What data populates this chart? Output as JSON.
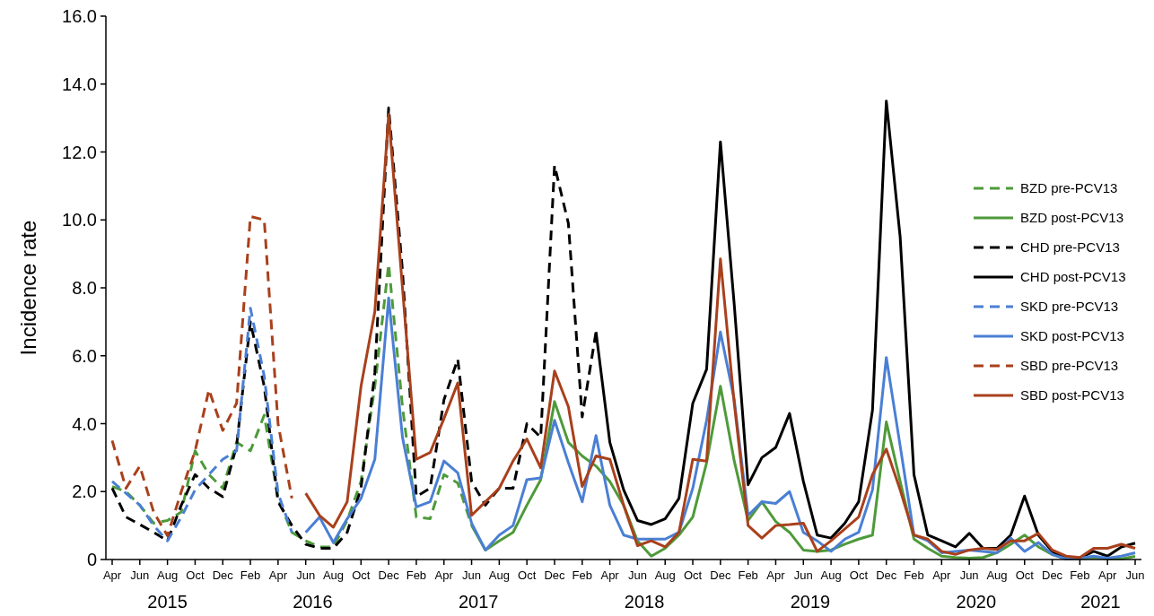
{
  "chart_data": {
    "type": "line",
    "ylabel": "Incidence rate",
    "categories": [
      "Apr",
      null,
      "Jun",
      null,
      "Aug",
      null,
      "Oct",
      null,
      "Dec",
      null,
      "Feb",
      null,
      "Apr",
      null,
      "Jun",
      null,
      "Aug",
      null,
      "Oct",
      null,
      "Dec",
      null,
      "Feb",
      null,
      "Apr",
      null,
      "Jun",
      null,
      "Aug",
      null,
      "Oct",
      null,
      "Dec",
      null,
      "Feb",
      null,
      "Apr",
      null,
      "Jun",
      null,
      "Aug",
      null,
      "Oct",
      null,
      "Dec",
      null,
      "Feb",
      null,
      "Apr",
      null,
      "Jun",
      null,
      "Aug",
      null,
      "Oct",
      null,
      "Dec",
      null,
      "Feb",
      null,
      "Apr",
      null,
      "Jun",
      null,
      "Aug",
      null,
      "Oct",
      null,
      "Dec",
      null,
      "Feb",
      null,
      "Apr",
      null,
      "Jun"
    ],
    "series": [
      {
        "name": "BZD pre-PCV13",
        "color": "#4e9a3a",
        "line_style": "dashed",
        "values": [
          2.15,
          2.0,
          1.6,
          1.07,
          1.15,
          1.4,
          3.2,
          2.5,
          2.1,
          3.45,
          3.2,
          4.25,
          1.8,
          0.8,
          0.55,
          0.37,
          0.37,
          1.15,
          2.3,
          5.1,
          8.7,
          4.5,
          1.25,
          1.2,
          2.5,
          2.25,
          1.0,
          null,
          null,
          null,
          null,
          null,
          null,
          null,
          null,
          null,
          null,
          null,
          null,
          null,
          null,
          null,
          null,
          null,
          null,
          null,
          null,
          null,
          null,
          null,
          null,
          null,
          null,
          null,
          null,
          null,
          null,
          null,
          null,
          null,
          null,
          null,
          null,
          null,
          null,
          null,
          null,
          null,
          null,
          null,
          null,
          null,
          null,
          null,
          null
        ]
      },
      {
        "name": "BZD post-PCV13",
        "color": "#4e9a3a",
        "line_style": "solid",
        "values": [
          null,
          null,
          null,
          null,
          null,
          null,
          null,
          null,
          null,
          null,
          null,
          null,
          null,
          null,
          null,
          null,
          null,
          null,
          null,
          null,
          null,
          null,
          null,
          null,
          null,
          null,
          1.0,
          0.28,
          0.55,
          0.8,
          1.6,
          2.35,
          4.65,
          3.45,
          3.05,
          2.75,
          2.3,
          1.6,
          0.55,
          0.1,
          0.33,
          0.72,
          1.25,
          2.85,
          5.1,
          2.9,
          1.15,
          1.7,
          1.12,
          0.8,
          0.28,
          0.24,
          0.28,
          0.45,
          0.6,
          0.72,
          4.05,
          2.3,
          0.6,
          0.33,
          0.1,
          0.06,
          0.04,
          0.06,
          0.2,
          0.45,
          0.72,
          0.37,
          0.15,
          0.02,
          0.02,
          0.06,
          0.02,
          0.02,
          0.09
        ]
      },
      {
        "name": "CHD pre-PCV13",
        "color": "#000000",
        "line_style": "dashed",
        "values": [
          2.1,
          1.25,
          1.03,
          0.8,
          0.55,
          1.6,
          2.5,
          2.1,
          1.85,
          3.35,
          7.0,
          5.1,
          1.7,
          1.0,
          0.45,
          0.33,
          0.33,
          0.8,
          2.1,
          5.5,
          13.3,
          8.5,
          1.85,
          2.1,
          4.7,
          5.9,
          2.3,
          1.6,
          2.1,
          2.1,
          4.0,
          3.6,
          11.6,
          9.9,
          4.2,
          6.7,
          null,
          null,
          null,
          null,
          null,
          null,
          null,
          null,
          null,
          null,
          null,
          null,
          null,
          null,
          null,
          null,
          null,
          null,
          null,
          null,
          null,
          null,
          null,
          null,
          null,
          null,
          null,
          null,
          null,
          null,
          null,
          null,
          null,
          null,
          null,
          null,
          null,
          null,
          null
        ]
      },
      {
        "name": "CHD post-PCV13",
        "color": "#000000",
        "line_style": "solid",
        "values": [
          null,
          null,
          null,
          null,
          null,
          null,
          null,
          null,
          null,
          null,
          null,
          null,
          null,
          null,
          null,
          null,
          null,
          null,
          null,
          null,
          null,
          null,
          null,
          null,
          null,
          null,
          null,
          null,
          null,
          null,
          null,
          null,
          null,
          null,
          null,
          6.7,
          3.45,
          2.05,
          1.15,
          1.03,
          1.2,
          1.8,
          4.6,
          5.6,
          12.3,
          7.5,
          2.2,
          3.0,
          3.3,
          4.3,
          2.3,
          0.72,
          0.63,
          1.07,
          1.7,
          4.4,
          13.5,
          9.5,
          2.5,
          0.72,
          0.55,
          0.37,
          0.77,
          0.33,
          0.33,
          0.72,
          1.87,
          0.72,
          0.24,
          0.02,
          0.04,
          0.24,
          0.1,
          0.37,
          0.48
        ]
      },
      {
        "name": "SKD pre-PCV13",
        "color": "#4a7fd4",
        "line_style": "dashed",
        "values": [
          2.3,
          1.95,
          1.6,
          1.0,
          0.55,
          1.25,
          2.05,
          2.5,
          2.95,
          3.2,
          7.4,
          5.4,
          1.95,
          0.8,
          null,
          null,
          null,
          null,
          null,
          null,
          null,
          null,
          null,
          null,
          null,
          null,
          null,
          null,
          null,
          null,
          null,
          null,
          null,
          null,
          null,
          null,
          null,
          null,
          null,
          null,
          null,
          null,
          null,
          null,
          null,
          null,
          null,
          null,
          null,
          null,
          null,
          null,
          null,
          null,
          null,
          null,
          null,
          null,
          null,
          null,
          null,
          null,
          null,
          null,
          null,
          null,
          null,
          null,
          null,
          null,
          null,
          null,
          null,
          null,
          null
        ]
      },
      {
        "name": "SKD post-PCV13",
        "color": "#4a7fd4",
        "line_style": "solid",
        "values": [
          null,
          null,
          null,
          null,
          null,
          null,
          null,
          null,
          null,
          null,
          null,
          null,
          null,
          null,
          0.8,
          1.25,
          0.5,
          1.2,
          1.8,
          2.95,
          7.7,
          3.6,
          1.55,
          1.7,
          2.9,
          2.55,
          1.07,
          0.28,
          0.72,
          1.0,
          2.35,
          2.4,
          4.1,
          2.85,
          1.7,
          3.65,
          1.6,
          0.72,
          0.6,
          0.6,
          0.6,
          0.8,
          2.1,
          4.1,
          6.7,
          4.7,
          1.3,
          1.7,
          1.65,
          2.0,
          0.8,
          0.55,
          0.24,
          0.6,
          0.8,
          2.05,
          5.95,
          3.35,
          0.72,
          0.55,
          0.2,
          0.24,
          0.28,
          0.24,
          0.2,
          0.63,
          0.24,
          0.5,
          0.15,
          0.02,
          0.04,
          0.1,
          0.04,
          0.1,
          0.2
        ]
      },
      {
        "name": "SBD pre-PCV13",
        "color": "#a9401c",
        "line_style": "dashed",
        "values": [
          3.5,
          2.1,
          2.75,
          1.4,
          0.7,
          2.0,
          3.2,
          5.0,
          3.8,
          4.6,
          10.1,
          10.0,
          4.0,
          1.8,
          null,
          null,
          null,
          null,
          null,
          null,
          null,
          null,
          null,
          null,
          null,
          null,
          null,
          null,
          null,
          null,
          null,
          null,
          null,
          null,
          null,
          null,
          null,
          null,
          null,
          null,
          null,
          null,
          null,
          null,
          null,
          null,
          null,
          null,
          null,
          null,
          null,
          null,
          null,
          null,
          null,
          null,
          null,
          null,
          null,
          null,
          null,
          null,
          null,
          null,
          null,
          null,
          null,
          null,
          null,
          null,
          null,
          null,
          null,
          null,
          null
        ]
      },
      {
        "name": "SBD post-PCV13",
        "color": "#a9401c",
        "line_style": "solid",
        "values": [
          null,
          null,
          null,
          null,
          null,
          null,
          null,
          null,
          null,
          null,
          null,
          null,
          null,
          null,
          1.95,
          1.3,
          0.95,
          1.7,
          5.1,
          7.3,
          13.1,
          8.0,
          2.95,
          3.15,
          4.15,
          5.2,
          1.3,
          1.7,
          2.1,
          2.9,
          3.55,
          2.7,
          5.55,
          4.5,
          2.15,
          3.05,
          2.95,
          1.6,
          0.41,
          0.55,
          0.37,
          0.8,
          2.95,
          2.9,
          8.85,
          4.6,
          1.0,
          0.63,
          1.0,
          1.03,
          1.07,
          0.24,
          0.55,
          0.9,
          1.25,
          2.5,
          3.25,
          2.05,
          0.72,
          0.6,
          0.24,
          0.15,
          0.28,
          0.33,
          0.3,
          0.55,
          0.55,
          0.77,
          0.28,
          0.1,
          0.06,
          0.33,
          0.33,
          0.45,
          0.33
        ]
      }
    ],
    "ylim": [
      0,
      16
    ],
    "yticks": [
      {
        "value": 0,
        "label": "0"
      },
      {
        "value": 2,
        "label": "2.0"
      },
      {
        "value": 4,
        "label": "4.0"
      },
      {
        "value": 6,
        "label": "6.0"
      },
      {
        "value": 8,
        "label": "8.0"
      },
      {
        "value": 10,
        "label": "10.0"
      },
      {
        "value": 12,
        "label": "12.0"
      },
      {
        "value": 14,
        "label": "14.0"
      },
      {
        "value": 16,
        "label": "16.0"
      }
    ],
    "grid": false,
    "legend": "right",
    "annotations": [
      "2015",
      "2016",
      "2017",
      "2018",
      "2019",
      "2020",
      "2021"
    ]
  }
}
